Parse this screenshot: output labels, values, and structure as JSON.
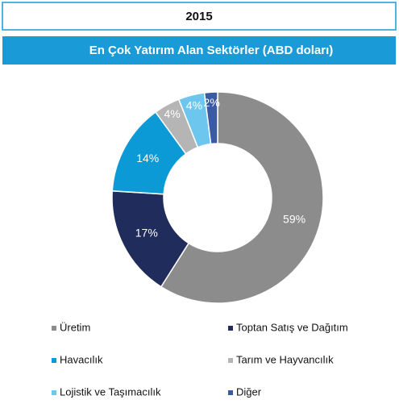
{
  "chart_data": {
    "type": "donut",
    "title": "2015",
    "subtitle": "En Çok Yatırım Alan Sektörler (ABD doları)",
    "categories": [
      "Üretim",
      "Toptan Satış ve Dağıtım",
      "Havacılık",
      "Tarım ve Hayvancılık",
      "Lojistik ve Taşımacılık",
      "Diğer"
    ],
    "values": [
      59,
      17,
      14,
      4,
      4,
      2
    ],
    "value_labels": [
      "59%",
      "17%",
      "14%",
      "4%",
      "4%",
      "2%"
    ],
    "colors": [
      "#8c8c8c",
      "#1f2c5c",
      "#0c9ad6",
      "#b5b5b5",
      "#6cc6ee",
      "#3a5aa3"
    ]
  }
}
